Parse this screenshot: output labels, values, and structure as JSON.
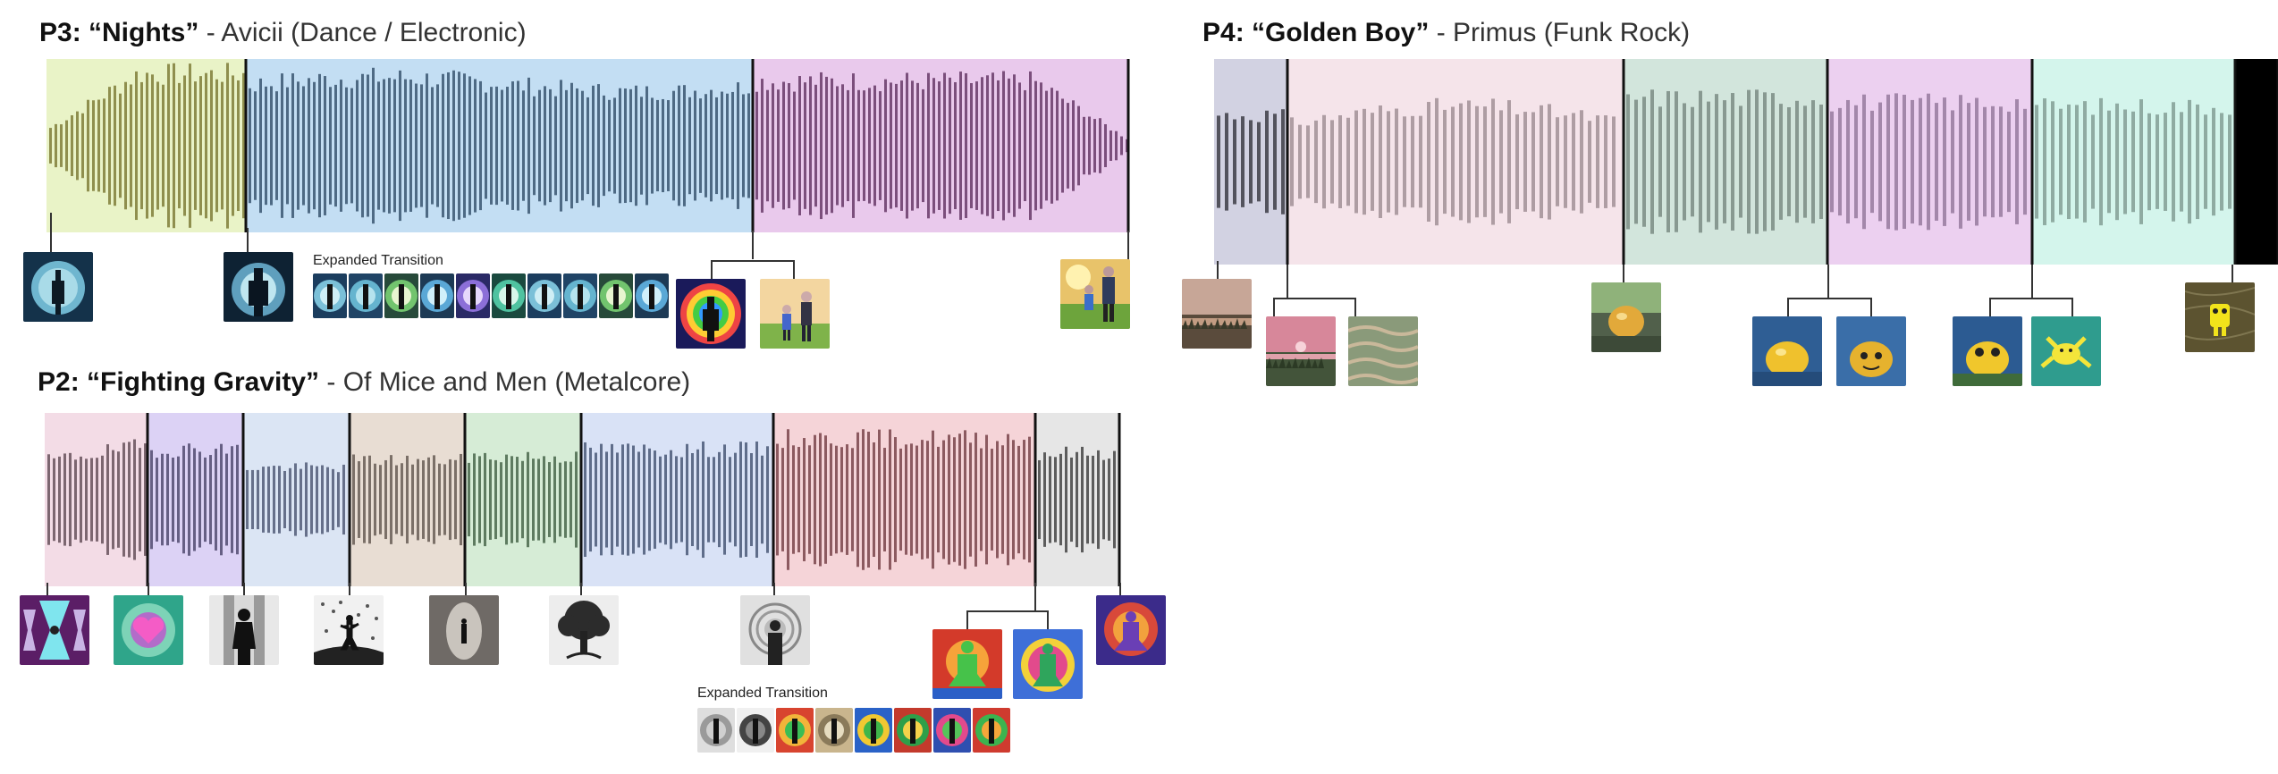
{
  "panels": {
    "p3": {
      "title_bold": "P3: “Nights”",
      "title_rest": " - Avicii (Dance / Electronic)",
      "transition_label": "Expanded Transition",
      "segment_colors": [
        "#e9f3c7",
        "#c3def3",
        "#e9c9ec"
      ],
      "bar_colors": [
        "#8f8f4e",
        "#4e6a84",
        "#7b4f7c"
      ]
    },
    "p2": {
      "title_bold": "P2: “Fighting Gravity”",
      "title_rest": " - Of Mice and Men (Metalcore)",
      "transition_label": "Expanded Transition",
      "segment_colors": [
        "#f3dce6",
        "#dcd2f5",
        "#dbe5f4",
        "#e8ddd3",
        "#d6ecd6",
        "#d9e2f6",
        "#f5d4d8",
        "#e6e6e6"
      ],
      "bar_colors": [
        "#7c6670",
        "#665f84",
        "#66708a",
        "#7b7068",
        "#5e7b60",
        "#5f6d8a",
        "#8c5a60",
        "#5c5c5c"
      ]
    },
    "p4": {
      "title_bold": "P4: “Golden Boy”",
      "title_rest": " - Primus (Funk Rock)",
      "segment_colors": [
        "#d2d2e2",
        "#f5e4ea",
        "#d2e5dc",
        "#ecd0f0",
        "#d4f5ec"
      ],
      "bar_colors": [
        "#45454f",
        "#a6959b",
        "#7f9088",
        "#9b7ea2",
        "#87a39a"
      ]
    }
  },
  "thumbnails": [
    {
      "id": "p3-t1",
      "icon": "silhouette-moon-image"
    },
    {
      "id": "p3-t2",
      "icon": "silhouette-man-image"
    },
    {
      "id": "p3-t3",
      "icon": "psychedelic-figure-image"
    },
    {
      "id": "p3-t4",
      "icon": "father-child-image"
    },
    {
      "id": "p3-t5",
      "icon": "father-child-sunset-image"
    },
    {
      "id": "p2-t1",
      "icon": "hourglass-pattern-image"
    },
    {
      "id": "p2-t2",
      "icon": "heart-image"
    },
    {
      "id": "p2-t3",
      "icon": "dark-figure-image"
    },
    {
      "id": "p2-t4",
      "icon": "dancing-figure-image"
    },
    {
      "id": "p2-t5",
      "icon": "figure-in-cave-image"
    },
    {
      "id": "p2-t6",
      "icon": "tree-image"
    },
    {
      "id": "p2-t7",
      "icon": "spiral-figure-image"
    },
    {
      "id": "p2-t8",
      "icon": "green-meditating-figure-image"
    },
    {
      "id": "p2-t9",
      "icon": "rainbow-figure-image"
    },
    {
      "id": "p2-t10",
      "icon": "cosmic-figure-image"
    },
    {
      "id": "p4-t1",
      "icon": "swamp-dusk-image"
    },
    {
      "id": "p4-t2",
      "icon": "swamp-pink-sky-image"
    },
    {
      "id": "p4-t3",
      "icon": "swamp-water-image"
    },
    {
      "id": "p4-t4",
      "icon": "golden-ball-swamp-image"
    },
    {
      "id": "p4-t5",
      "icon": "golden-ball-water-image"
    },
    {
      "id": "p4-t6",
      "icon": "golden-ball-face-image"
    },
    {
      "id": "p4-t7",
      "icon": "golden-frog-ball-image"
    },
    {
      "id": "p4-t8",
      "icon": "yellow-frog-water-image"
    },
    {
      "id": "p4-t9",
      "icon": "yellow-robot-frog-image"
    }
  ]
}
